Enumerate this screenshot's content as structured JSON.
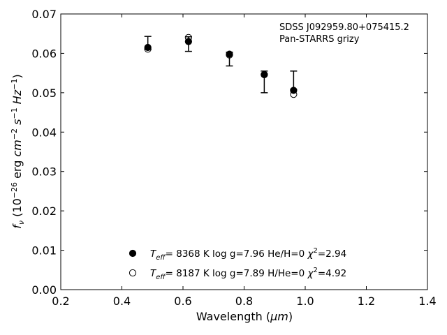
{
  "chart_data": {
    "type": "scatter",
    "xlabel_main": "Wavelength (",
    "xlabel_unit": "μm",
    "xlabel_close": ")",
    "ylabel": {
      "f": "f",
      "nu": "ν",
      "prefix": " (10",
      "exp1": "−26",
      "erg": " erg ",
      "cm": "cm",
      "exp2": "−2",
      "s": "s",
      "exp3": "−1",
      "hz": "Hz",
      "exp4": "−1",
      "close": ")"
    },
    "xlim": [
      0.2,
      1.4
    ],
    "ylim": [
      0.0,
      0.07
    ],
    "xticks": [
      "0.2",
      "0.4",
      "0.6",
      "0.8",
      "1.0",
      "1.2",
      "1.4"
    ],
    "yticks": [
      "0.00",
      "0.01",
      "0.02",
      "0.03",
      "0.04",
      "0.05",
      "0.06",
      "0.07"
    ],
    "annotations": [
      "SDSS J092959.80+075415.2",
      "Pan-STARRS grizy"
    ],
    "observed": {
      "x": [
        0.485,
        0.618,
        0.752,
        0.866,
        0.962
      ],
      "y": [
        0.0613,
        0.0632,
        0.0595,
        0.0543,
        0.0508
      ],
      "err_low": [
        0.0003,
        0.0027,
        0.0027,
        0.0043,
        0.0
      ],
      "err_high": [
        0.003,
        0.001,
        0.0008,
        0.0012,
        0.0047
      ]
    },
    "series": [
      {
        "marker": "filled",
        "values": [
          0.0615,
          0.063,
          0.0598,
          0.0546,
          0.0506
        ],
        "legend": {
          "teff": "T",
          "eff": "eff",
          "rest": "=  8368 K  log g=7.96  He/H=0  ",
          "chi": "χ",
          "chi_exp": "2",
          "chi_val": "=2.94"
        }
      },
      {
        "marker": "open",
        "values": [
          0.0611,
          0.064,
          0.0596,
          0.0546,
          0.0496
        ],
        "legend": {
          "teff": "T",
          "eff": "eff",
          "rest": "=  8187 K  log g=7.89  H/He=0  ",
          "chi": "χ",
          "chi_exp": "2",
          "chi_val": "=4.92"
        }
      }
    ],
    "grid": false,
    "legend_position": "bottom-center"
  }
}
